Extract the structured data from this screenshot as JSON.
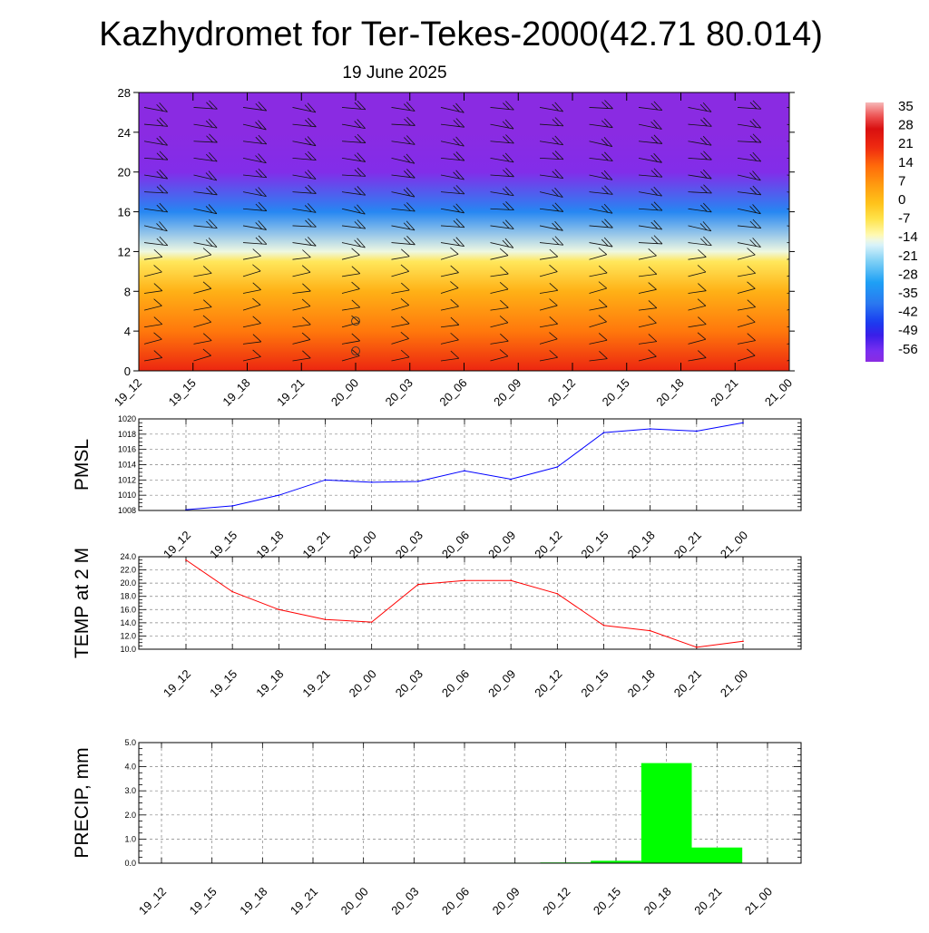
{
  "header": {
    "title": "Kazhydromet for Ter-Tekes-2000(42.71 80.014)",
    "date": "19 June 2025"
  },
  "time_labels": [
    "19_12",
    "19_15",
    "19_18",
    "19_21",
    "20_00",
    "20_03",
    "20_06",
    "20_09",
    "20_12",
    "20_15",
    "20_18",
    "20_21",
    "21_00"
  ],
  "colors": {
    "pmsl_line": "#0000ff",
    "temp_line": "#ff0000",
    "precip_bar": "#00ff00",
    "grid": "#808080"
  },
  "chart_data": [
    {
      "type": "heatmap",
      "title": "Kazhydromet for Ter-Tekes-2000(42.71 80.014)",
      "subtitle": "19 June 2025",
      "ylim": [
        0,
        28
      ],
      "yticks": [
        0,
        4,
        8,
        12,
        16,
        20,
        24,
        28
      ],
      "categories": [
        "19_12",
        "19_15",
        "19_18",
        "19_21",
        "20_00",
        "20_03",
        "20_06",
        "20_09",
        "20_12",
        "20_15",
        "20_18",
        "20_21",
        "21_00"
      ],
      "colorbar_ticks": [
        "35",
        "28",
        "21",
        "14",
        "7",
        "0",
        "-7",
        "-14",
        "-21",
        "-28",
        "-35",
        "-42",
        "-49",
        "-56"
      ],
      "colorbar_range": [
        -60,
        38
      ],
      "approx_profile": [
        {
          "level": 0,
          "temp": 22
        },
        {
          "level": 4,
          "temp": 12
        },
        {
          "level": 8,
          "temp": 3
        },
        {
          "level": 11,
          "temp": -7
        },
        {
          "level": 12,
          "temp": -14
        },
        {
          "level": 16,
          "temp": -35
        },
        {
          "level": 20,
          "temp": -58
        },
        {
          "level": 24,
          "temp": -60
        },
        {
          "level": 28,
          "temp": -60
        }
      ],
      "overlay": "wind barbs"
    },
    {
      "type": "line",
      "ylabel": "PMSL",
      "ylim": [
        1008,
        1020
      ],
      "yticks": [
        "1008",
        "1010",
        "1012",
        "1014",
        "1016",
        "1018",
        "1020"
      ],
      "categories": [
        "19_12",
        "19_15",
        "19_18",
        "19_21",
        "20_00",
        "20_03",
        "20_06",
        "20_09",
        "20_12",
        "20_15",
        "20_18",
        "20_21",
        "21_00"
      ],
      "values": [
        1008.1,
        1008.6,
        1010.0,
        1012.0,
        1011.7,
        1011.8,
        1013.2,
        1012.1,
        1013.7,
        1018.2,
        1018.7,
        1018.4,
        1019.5
      ]
    },
    {
      "type": "line",
      "ylabel": "TEMP at 2 M",
      "ylim": [
        10,
        24
      ],
      "yticks": [
        "10.0",
        "12.0",
        "14.0",
        "16.0",
        "18.0",
        "20.0",
        "22.0",
        "24.0"
      ],
      "categories": [
        "19_12",
        "19_15",
        "19_18",
        "19_21",
        "20_00",
        "20_03",
        "20_06",
        "20_09",
        "20_12",
        "20_15",
        "20_18",
        "20_21",
        "21_00"
      ],
      "values": [
        23.5,
        18.7,
        16.0,
        14.5,
        14.1,
        19.8,
        20.4,
        20.4,
        18.4,
        13.6,
        12.8,
        10.3,
        11.2
      ]
    },
    {
      "type": "bar",
      "ylabel": "PRECIP, mm",
      "ylim": [
        0,
        5
      ],
      "yticks": [
        "0.0",
        "1.0",
        "2.0",
        "3.0",
        "4.0",
        "5.0"
      ],
      "categories": [
        "19_12",
        "19_15",
        "19_18",
        "19_21",
        "20_00",
        "20_03",
        "20_06",
        "20_09",
        "20_12",
        "20_15",
        "20_18",
        "20_21",
        "21_00"
      ],
      "values": [
        0,
        0,
        0,
        0,
        0,
        0,
        0,
        0.02,
        0.03,
        0.1,
        4.15,
        0.65,
        0
      ]
    }
  ]
}
